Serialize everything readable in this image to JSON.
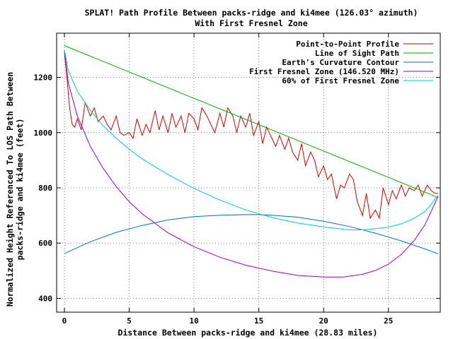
{
  "chart_data": {
    "type": "line",
    "title": "SPLAT! Path Profile Between packs-ridge and ki4mee (126.03° azimuth)",
    "subtitle": "With First Fresnel Zone",
    "xlabel": "Distance Between packs-ridge and ki4mee (28.83 miles)",
    "ylabel_line1": "Normalized Height Referenced To LOS Path Between",
    "ylabel_line2": "packs-ridge and ki4mee (feet)",
    "xlim": [
      -0.6,
      29.0
    ],
    "ylim": [
      350,
      1360
    ],
    "x_ticks": [
      0,
      5,
      10,
      15,
      20,
      25
    ],
    "x_tick_labels": [
      "0",
      "5",
      "10",
      "15",
      "20",
      "25"
    ],
    "y_ticks": [
      400,
      600,
      800,
      1000,
      1200
    ],
    "y_tick_labels": [
      "400",
      "600",
      "800",
      "1000",
      "1200"
    ],
    "grid": true,
    "legend_position": "top-right",
    "series": [
      {
        "name": "Point-to-Point Profile",
        "color": "#cc0000",
        "x": [
          0,
          0.2,
          0.4,
          0.6,
          0.8,
          1.0,
          1.3,
          1.6,
          2.0,
          2.3,
          2.6,
          3.0,
          3.3,
          3.6,
          4.0,
          4.3,
          4.6,
          5.0,
          5.3,
          5.6,
          6.0,
          6.3,
          6.6,
          7.0,
          7.3,
          7.6,
          8.0,
          8.3,
          8.6,
          9.0,
          9.3,
          9.6,
          10.0,
          10.3,
          10.6,
          11.0,
          11.3,
          11.6,
          12.0,
          12.3,
          12.6,
          13.0,
          13.3,
          13.6,
          14.0,
          14.3,
          14.6,
          15.0,
          15.3,
          15.6,
          16.0,
          16.3,
          16.6,
          17.0,
          17.3,
          17.6,
          18.0,
          18.3,
          18.6,
          19.0,
          19.3,
          19.6,
          20.0,
          20.3,
          20.6,
          21.0,
          21.3,
          21.6,
          22.0,
          22.3,
          22.6,
          23.0,
          23.3,
          23.6,
          24.0,
          24.3,
          24.6,
          25.0,
          25.3,
          25.6,
          26.0,
          26.3,
          26.6,
          27.0,
          27.3,
          27.6,
          28.0,
          28.3,
          28.6,
          28.83
        ],
        "y": [
          1290,
          1200,
          1090,
          1030,
          1020,
          1050,
          1010,
          1110,
          1060,
          1090,
          1040,
          1060,
          1030,
          1010,
          1060,
          1000,
          990,
          1000,
          980,
          1050,
          990,
          1030,
          1000,
          1080,
          1010,
          1060,
          1000,
          1070,
          1020,
          1060,
          1000,
          1070,
          1050,
          1010,
          1090,
          1060,
          1030,
          1000,
          1070,
          1020,
          1090,
          1060,
          1000,
          1060,
          1020,
          1070,
          990,
          1040,
          960,
          1020,
          980,
          950,
          990,
          940,
          980,
          930,
          900,
          960,
          880,
          930,
          900,
          840,
          880,
          830,
          850,
          760,
          810,
          800,
          850,
          830,
          750,
          700,
          780,
          690,
          720,
          690,
          800,
          740,
          790,
          760,
          810,
          770,
          800,
          790,
          810,
          770,
          810,
          790,
          780,
          780
        ]
      },
      {
        "name": "Line of Sight Path",
        "color": "#00aa00",
        "x": [
          0,
          28.83
        ],
        "y": [
          1315,
          765
        ]
      },
      {
        "name": "Earth's Curvature Contour",
        "color": "#0070c0",
        "x": [
          0,
          2,
          4,
          6,
          8,
          10,
          12,
          14,
          15,
          16,
          18,
          20,
          22,
          24,
          26,
          28,
          28.83
        ],
        "y": [
          562,
          605,
          639,
          664,
          684,
          696,
          701,
          703,
          703,
          701,
          694,
          679,
          660,
          636,
          608,
          576,
          561
        ]
      },
      {
        "name": "First Fresnel Zone (146.520 MHz)",
        "color": "#9900cc",
        "x": [
          0,
          0.3,
          1,
          2,
          3,
          4,
          5,
          6,
          8,
          10,
          12,
          14,
          16,
          18,
          20,
          21.5,
          23,
          24,
          25,
          26,
          27,
          27.8,
          28.3,
          28.6,
          28.83
        ],
        "y": [
          1300,
          1180,
          1060,
          950,
          870,
          805,
          750,
          706,
          637,
          587,
          549,
          520,
          499,
          483,
          477,
          477,
          487,
          501,
          524,
          559,
          610,
          665,
          715,
          745,
          770
        ]
      },
      {
        "name": "60% of First Fresnel Zone",
        "color": "#00cccc",
        "x": [
          0,
          0.3,
          1,
          2,
          3,
          4,
          5,
          6,
          8,
          10,
          12,
          14,
          16,
          18,
          20,
          22,
          23,
          24,
          25,
          26,
          27,
          27.8,
          28.3,
          28.6,
          28.83
        ],
        "y": [
          1300,
          1225,
          1150,
          1080,
          1025,
          980,
          940,
          905,
          848,
          798,
          756,
          720,
          693,
          673,
          659,
          648,
          648,
          652,
          658,
          670,
          690,
          714,
          740,
          760,
          772
        ]
      }
    ]
  }
}
